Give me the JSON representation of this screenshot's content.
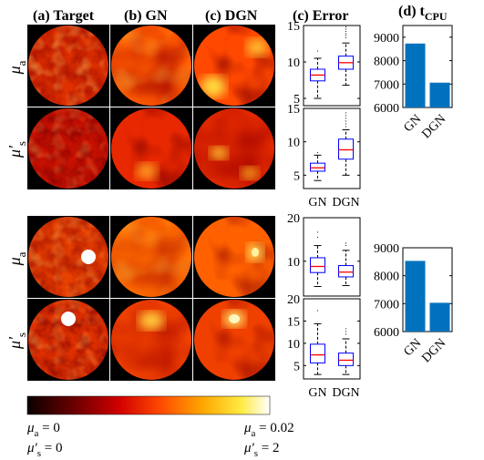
{
  "headers": {
    "target": "(a) Target",
    "gn": "(b) GN",
    "dgn": "(c) DGN",
    "error": "(c) Error",
    "tcpu_prefix": "(d) t",
    "tcpu_sub": "CPU"
  },
  "row_labels": {
    "mua_sym": "μ",
    "mua_sub": "a",
    "mus_sym": "μ'",
    "mus_sub": "s"
  },
  "colorbar": {
    "low_mua": "μ",
    "low_mua_sub": "a",
    "low_mua_val": " = 0",
    "low_mus": "μ'",
    "low_mus_sub": "s",
    "low_mus_val": " = 0",
    "high_mua": "μ",
    "high_mua_sub": "a",
    "high_mua_val": " = 0.02",
    "high_mus": "μ'",
    "high_mus_sub": "s",
    "high_mus_val": " = 2"
  },
  "colors": {
    "bar": "#0072bd",
    "box": "#0000ff",
    "median": "#ff0000",
    "panel_bg": "#000000"
  },
  "chart_data": [
    {
      "type": "box",
      "panel": "error-top-mua",
      "categories": [
        "GN",
        "DGN"
      ],
      "ylim": [
        4,
        15
      ],
      "yticks": [
        5,
        10,
        15
      ],
      "boxes": [
        {
          "min": 5,
          "q1": 7.4,
          "median": 8.2,
          "q3": 9.0,
          "max": 10.5,
          "outliers": [
            11.5
          ]
        },
        {
          "min": 6.8,
          "q1": 9.0,
          "median": 9.9,
          "q3": 10.8,
          "max": 12.6,
          "outliers": [
            13.3,
            13.6,
            13.9,
            14.2,
            14.5,
            14.8
          ]
        }
      ]
    },
    {
      "type": "box",
      "panel": "error-top-mus",
      "categories": [
        "GN",
        "DGN"
      ],
      "ylim": [
        3,
        15
      ],
      "yticks": [
        5,
        10,
        15
      ],
      "boxes": [
        {
          "min": 4.2,
          "q1": 5.6,
          "median": 6.1,
          "q3": 6.8,
          "max": 8.0,
          "outliers": [
            8.4
          ]
        },
        {
          "min": 5.0,
          "q1": 7.4,
          "median": 8.8,
          "q3": 10.4,
          "max": 11.8,
          "outliers": [
            12.3,
            12.7,
            13.1,
            13.5,
            13.9,
            14.3
          ]
        }
      ],
      "xlabels": true
    },
    {
      "type": "box",
      "panel": "error-bottom-mua",
      "categories": [
        "GN",
        "DGN"
      ],
      "ylim": [
        2,
        20
      ],
      "yticks": [
        10,
        20
      ],
      "boxes": [
        {
          "min": 4.2,
          "q1": 7.4,
          "median": 8.8,
          "q3": 10.8,
          "max": 13.6,
          "outliers": [
            15.5,
            16.6
          ]
        },
        {
          "min": 4.4,
          "q1": 6.4,
          "median": 7.5,
          "q3": 9.0,
          "max": 12.5,
          "outliers": [
            13.6,
            14.1
          ]
        }
      ]
    },
    {
      "type": "box",
      "panel": "error-bottom-mus",
      "categories": [
        "GN",
        "DGN"
      ],
      "ylim": [
        2,
        20
      ],
      "yticks": [
        5,
        10,
        15,
        20
      ],
      "boxes": [
        {
          "min": 3.0,
          "q1": 5.6,
          "median": 7.4,
          "q3": 9.8,
          "max": 14.4,
          "outliers": [
            17.3
          ]
        },
        {
          "min": 3.0,
          "q1": 5.0,
          "median": 6.2,
          "q3": 7.8,
          "max": 11.0,
          "outliers": [
            12.0,
            12.6,
            13.3
          ]
        }
      ],
      "xlabels": true
    },
    {
      "type": "bar",
      "panel": "tcpu-top",
      "categories": [
        "GN",
        "DGN"
      ],
      "values": [
        8730,
        7060
      ],
      "ylim": [
        6000,
        9500
      ],
      "yticks": [
        6000,
        7000,
        8000,
        9000
      ]
    },
    {
      "type": "bar",
      "panel": "tcpu-bottom",
      "categories": [
        "GN",
        "DGN"
      ],
      "values": [
        8530,
        7030
      ],
      "ylim": [
        6000,
        9000
      ],
      "yticks": [
        6000,
        7000,
        8000,
        9000
      ]
    }
  ]
}
